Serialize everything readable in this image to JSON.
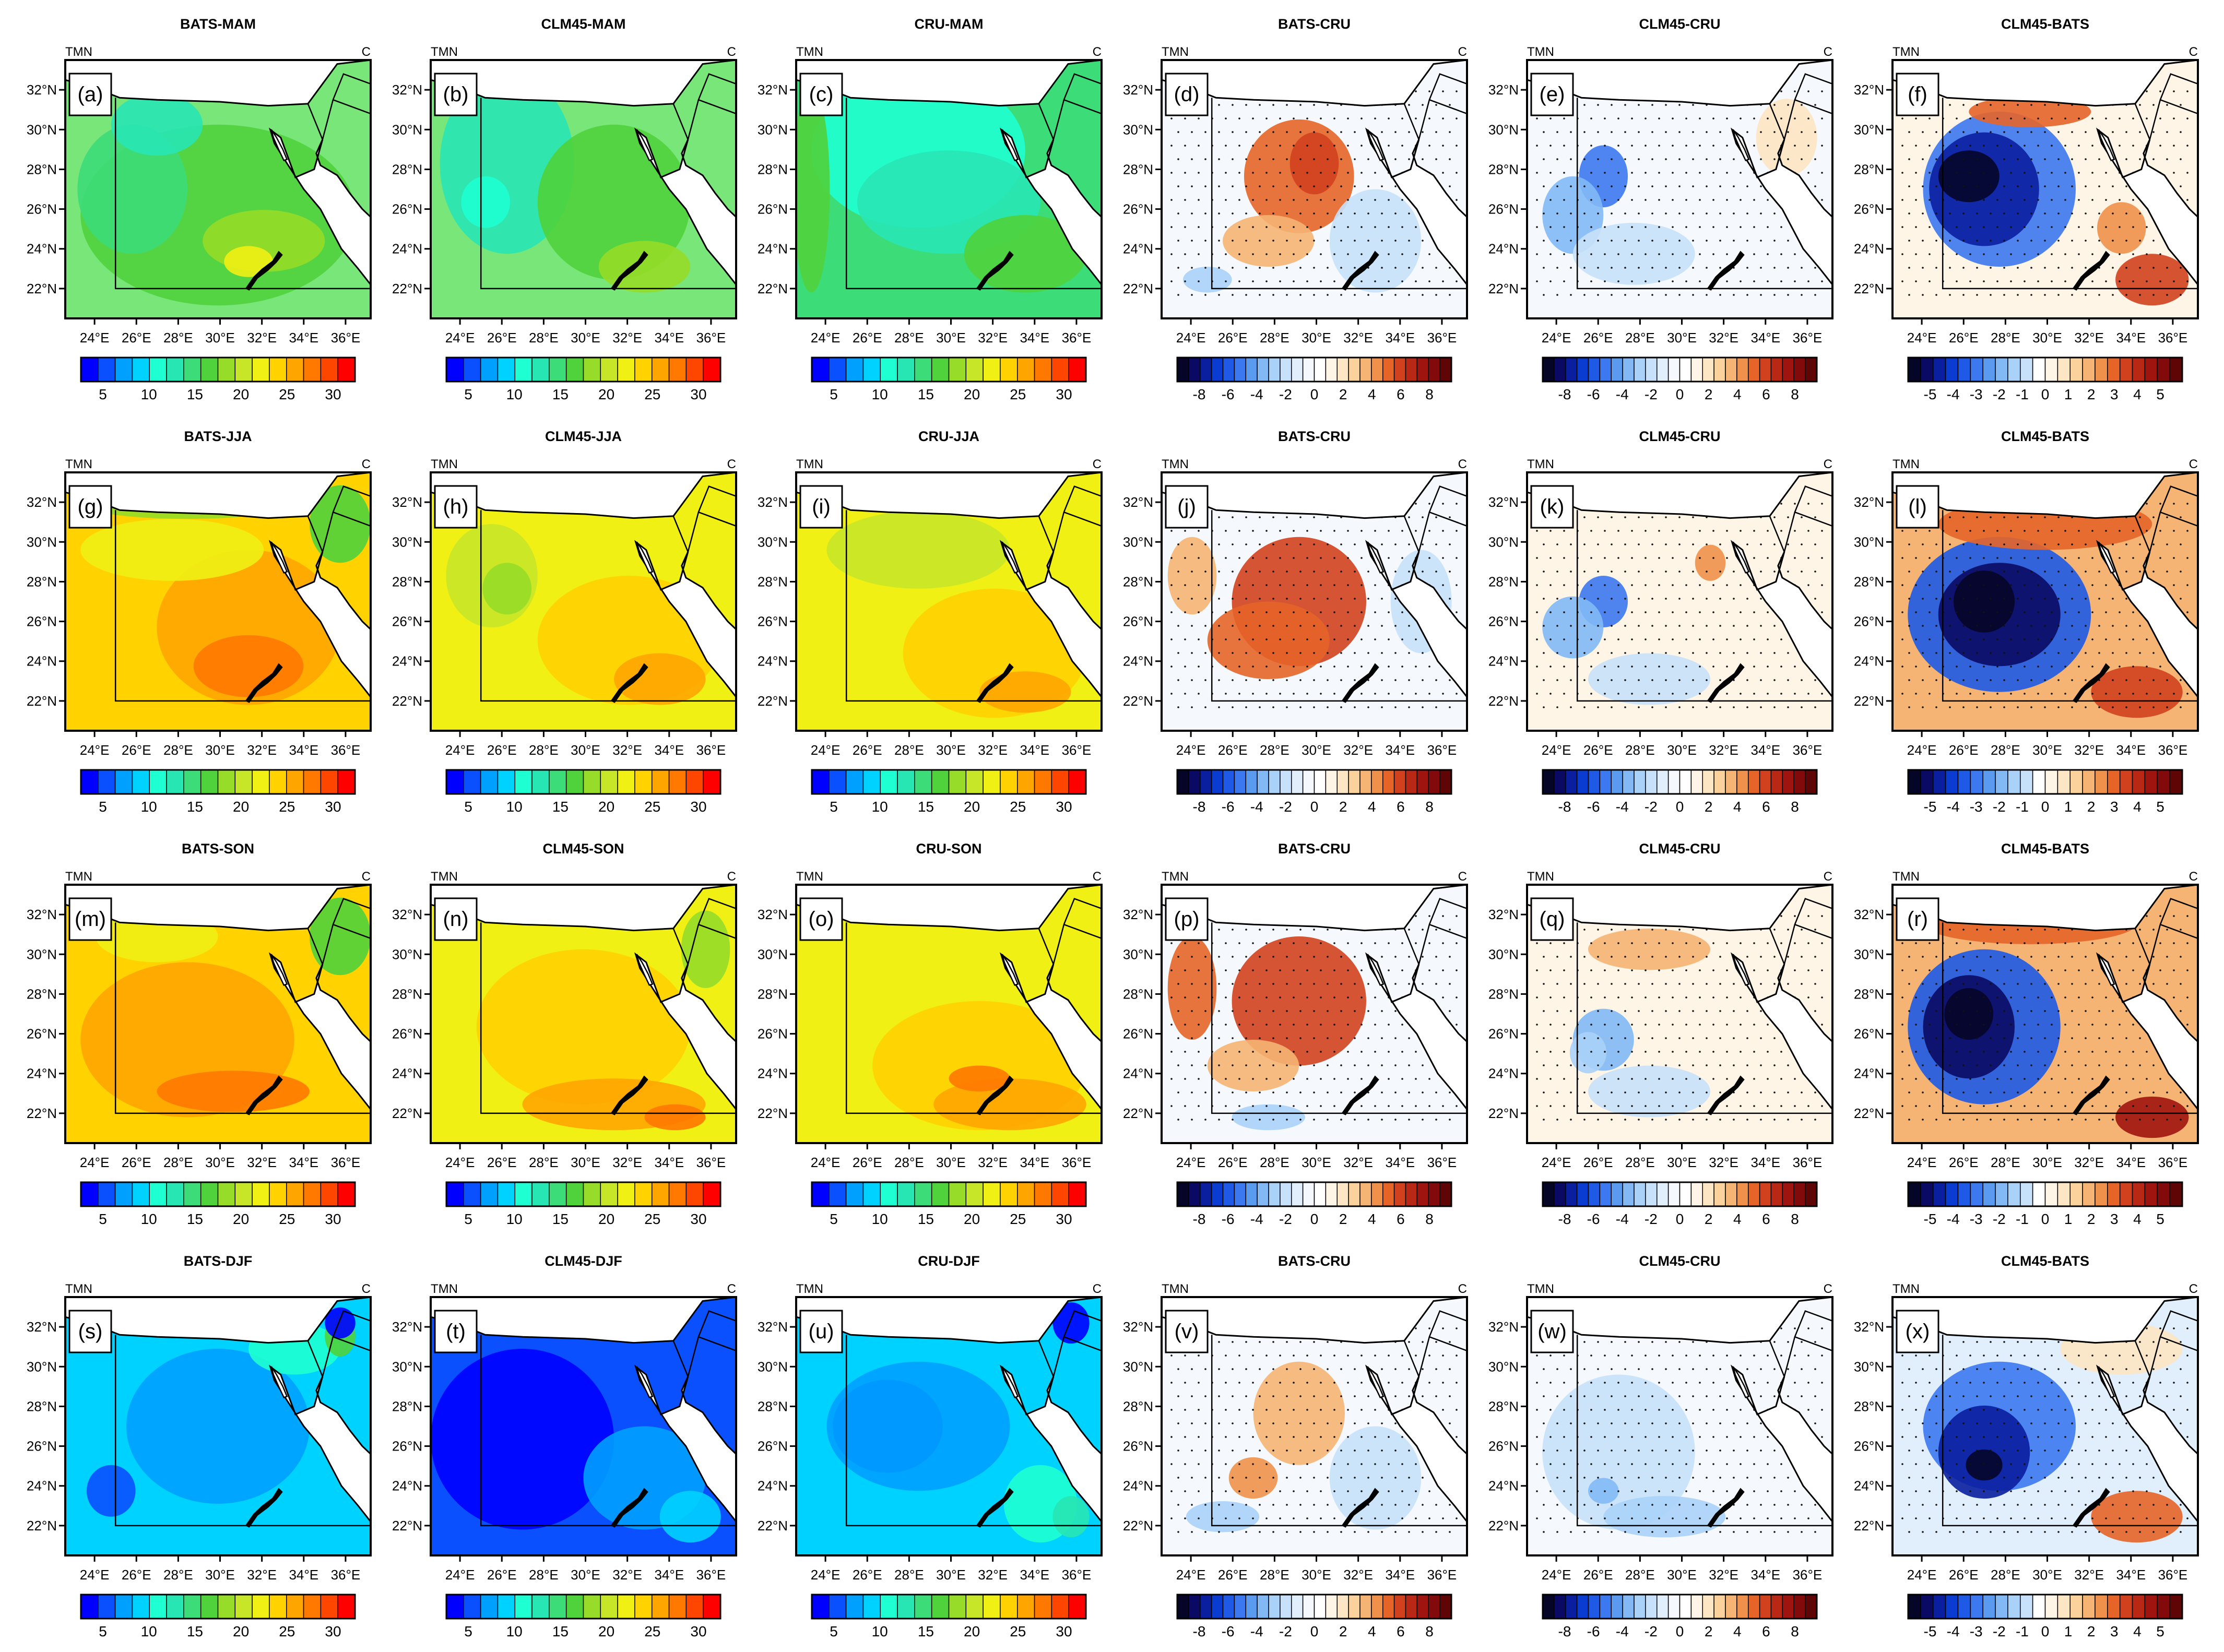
{
  "figure": {
    "corner_left": "TMN",
    "corner_right": "C",
    "lat_labels": [
      "32°N",
      "30°N",
      "28°N",
      "26°N",
      "24°N",
      "22°N"
    ],
    "lon_labels": [
      "24°E",
      "26°E",
      "28°E",
      "30°E",
      "32°E",
      "34°E",
      "36°E"
    ]
  },
  "colorbars": {
    "abs": {
      "labels": [
        "5",
        "10",
        "15",
        "20",
        "25",
        "30"
      ],
      "colors": [
        "#0000ff",
        "#0a50ff",
        "#00a0ff",
        "#00d2ff",
        "#1effd2",
        "#28e6b4",
        "#3cdc78",
        "#50d23c",
        "#96dc28",
        "#c8e628",
        "#f0f014",
        "#ffd200",
        "#ffa500",
        "#ff7800",
        "#ff4600",
        "#ff0000"
      ]
    },
    "diff8": {
      "labels": [
        "-8",
        "-6",
        "-4",
        "-2",
        "0",
        "2",
        "4",
        "6",
        "8"
      ],
      "colors": [
        "#050528",
        "#0a0a64",
        "#0a1ea0",
        "#0a3cd2",
        "#1e5ae6",
        "#3c78f0",
        "#5a9bf0",
        "#82b9f5",
        "#aad2f8",
        "#c8e1fa",
        "#e1eefc",
        "#f5f9fe",
        "#ffffff",
        "#fff5e6",
        "#fde6c3",
        "#fbd29b",
        "#f5b473",
        "#f0914b",
        "#e66428",
        "#d2411e",
        "#b92814",
        "#a0140f",
        "#820a0a",
        "#5f0505"
      ]
    },
    "diff5": {
      "labels": [
        "-5",
        "-4",
        "-3",
        "-2",
        "-1",
        "0",
        "1",
        "2",
        "3",
        "4",
        "5"
      ],
      "colors": [
        "#050528",
        "#0a0a64",
        "#0a1ea0",
        "#0a3cd2",
        "#1e5ae6",
        "#3c78f0",
        "#5a9bf0",
        "#82b9f5",
        "#aad2f8",
        "#c8e1fa",
        "#ffffff",
        "#fff5e6",
        "#fde6c3",
        "#fbd29b",
        "#f5b473",
        "#f0914b",
        "#e66428",
        "#d2411e",
        "#b92814",
        "#a0140f",
        "#820a0a",
        "#5f0505"
      ]
    }
  },
  "panels": [
    {
      "title": "BATS-MAM",
      "label": "(a)",
      "type": "abs",
      "base": "#78e678",
      "blobs": [
        [
          "#50d23c",
          0.5,
          0.6,
          0.45,
          0.35
        ],
        [
          "#3cdc78",
          0.22,
          0.5,
          0.18,
          0.25
        ],
        [
          "#96dc28",
          0.65,
          0.7,
          0.2,
          0.12
        ],
        [
          "#f0f014",
          0.6,
          0.78,
          0.08,
          0.06
        ],
        [
          "#28e6b4",
          0.3,
          0.25,
          0.15,
          0.12
        ]
      ]
    },
    {
      "title": "CLM45-MAM",
      "label": "(b)",
      "type": "abs",
      "base": "#78e678",
      "blobs": [
        [
          "#28e6b4",
          0.25,
          0.4,
          0.22,
          0.35
        ],
        [
          "#1effd2",
          0.18,
          0.55,
          0.08,
          0.1
        ],
        [
          "#50d23c",
          0.6,
          0.55,
          0.25,
          0.3
        ],
        [
          "#96dc28",
          0.7,
          0.8,
          0.15,
          0.1
        ]
      ]
    },
    {
      "title": "CRU-MAM",
      "label": "(c)",
      "type": "abs",
      "base": "#3cdc78",
      "blobs": [
        [
          "#1effd2",
          0.4,
          0.35,
          0.35,
          0.3
        ],
        [
          "#28e6b4",
          0.5,
          0.55,
          0.3,
          0.2
        ],
        [
          "#50d23c",
          0.75,
          0.75,
          0.2,
          0.15
        ],
        [
          "#50d23c",
          0.05,
          0.5,
          0.06,
          0.4
        ]
      ]
    },
    {
      "title": "BATS-CRU",
      "label": "(d)",
      "type": "diff8",
      "base": "#f5f9fe",
      "blobs": [
        [
          "#e66428",
          0.45,
          0.45,
          0.18,
          0.22
        ],
        [
          "#f5b473",
          0.35,
          0.7,
          0.15,
          0.1
        ],
        [
          "#d2411e",
          0.5,
          0.4,
          0.08,
          0.12
        ],
        [
          "#c8e1fa",
          0.7,
          0.7,
          0.15,
          0.2
        ],
        [
          "#aad2f8",
          0.15,
          0.85,
          0.08,
          0.05
        ]
      ]
    },
    {
      "title": "CLM45-CRU",
      "label": "(e)",
      "type": "diff8",
      "base": "#f5f9fe",
      "blobs": [
        [
          "#3c78f0",
          0.25,
          0.45,
          0.08,
          0.12
        ],
        [
          "#82b9f5",
          0.15,
          0.6,
          0.1,
          0.15
        ],
        [
          "#c8e1fa",
          0.35,
          0.75,
          0.2,
          0.12
        ],
        [
          "#fde6c3",
          0.85,
          0.3,
          0.1,
          0.15
        ]
      ]
    },
    {
      "title": "CLM45-BATS",
      "label": "(f)",
      "type": "diff5",
      "base": "#fff5e6",
      "blobs": [
        [
          "#3c78f0",
          0.35,
          0.5,
          0.25,
          0.3
        ],
        [
          "#0a1ea0",
          0.3,
          0.5,
          0.18,
          0.22
        ],
        [
          "#050528",
          0.25,
          0.45,
          0.1,
          0.1
        ],
        [
          "#e66428",
          0.45,
          0.2,
          0.2,
          0.06
        ],
        [
          "#d2411e",
          0.85,
          0.85,
          0.12,
          0.1
        ],
        [
          "#f0914b",
          0.75,
          0.65,
          0.08,
          0.1
        ]
      ]
    },
    {
      "title": "BATS-JJA",
      "label": "(g)",
      "type": "abs",
      "base": "#ffd200",
      "blobs": [
        [
          "#ffa500",
          0.6,
          0.6,
          0.3,
          0.3
        ],
        [
          "#ff7800",
          0.6,
          0.75,
          0.18,
          0.12
        ],
        [
          "#f0f014",
          0.35,
          0.3,
          0.3,
          0.12
        ],
        [
          "#96dc28",
          0.4,
          0.12,
          0.35,
          0.06
        ],
        [
          "#50d23c",
          0.9,
          0.2,
          0.1,
          0.15
        ]
      ]
    },
    {
      "title": "CLM45-JJA",
      "label": "(h)",
      "type": "abs",
      "base": "#f0f014",
      "blobs": [
        [
          "#c8e628",
          0.2,
          0.4,
          0.15,
          0.2
        ],
        [
          "#96dc28",
          0.25,
          0.45,
          0.08,
          0.1
        ],
        [
          "#ffd200",
          0.65,
          0.65,
          0.3,
          0.25
        ],
        [
          "#ffa500",
          0.75,
          0.8,
          0.15,
          0.1
        ]
      ]
    },
    {
      "title": "CRU-JJA",
      "label": "(i)",
      "type": "abs",
      "base": "#f0f014",
      "blobs": [
        [
          "#c8e628",
          0.4,
          0.3,
          0.3,
          0.15
        ],
        [
          "#ffd200",
          0.65,
          0.7,
          0.3,
          0.25
        ],
        [
          "#ffa500",
          0.75,
          0.85,
          0.15,
          0.08
        ]
      ]
    },
    {
      "title": "BATS-CRU",
      "label": "(j)",
      "type": "diff8",
      "base": "#f5f9fe",
      "blobs": [
        [
          "#d2411e",
          0.45,
          0.5,
          0.22,
          0.25
        ],
        [
          "#e66428",
          0.35,
          0.65,
          0.2,
          0.15
        ],
        [
          "#f5b473",
          0.1,
          0.4,
          0.08,
          0.15
        ],
        [
          "#c8e1fa",
          0.85,
          0.5,
          0.1,
          0.2
        ]
      ]
    },
    {
      "title": "CLM45-CRU",
      "label": "(k)",
      "type": "diff8",
      "base": "#fff5e6",
      "blobs": [
        [
          "#3c78f0",
          0.25,
          0.5,
          0.08,
          0.1
        ],
        [
          "#82b9f5",
          0.15,
          0.6,
          0.1,
          0.12
        ],
        [
          "#c8e1fa",
          0.4,
          0.8,
          0.2,
          0.1
        ],
        [
          "#f0914b",
          0.6,
          0.35,
          0.05,
          0.07
        ]
      ]
    },
    {
      "title": "CLM45-BATS",
      "label": "(l)",
      "type": "diff5",
      "base": "#f5b473",
      "blobs": [
        [
          "#1e5ae6",
          0.35,
          0.55,
          0.3,
          0.3
        ],
        [
          "#0a0a64",
          0.35,
          0.55,
          0.2,
          0.2
        ],
        [
          "#050528",
          0.3,
          0.5,
          0.1,
          0.12
        ],
        [
          "#e66428",
          0.5,
          0.2,
          0.35,
          0.1
        ],
        [
          "#d2411e",
          0.8,
          0.85,
          0.15,
          0.1
        ]
      ]
    },
    {
      "title": "BATS-SON",
      "label": "(m)",
      "type": "abs",
      "base": "#ffd200",
      "blobs": [
        [
          "#ffa500",
          0.4,
          0.6,
          0.35,
          0.3
        ],
        [
          "#ff7800",
          0.55,
          0.8,
          0.25,
          0.08
        ],
        [
          "#f0f014",
          0.3,
          0.2,
          0.2,
          0.1
        ],
        [
          "#50d23c",
          0.9,
          0.2,
          0.1,
          0.15
        ]
      ]
    },
    {
      "title": "CLM45-SON",
      "label": "(n)",
      "type": "abs",
      "base": "#f0f014",
      "blobs": [
        [
          "#ffd200",
          0.5,
          0.55,
          0.35,
          0.3
        ],
        [
          "#ffa500",
          0.6,
          0.85,
          0.3,
          0.1
        ],
        [
          "#ff7800",
          0.8,
          0.9,
          0.1,
          0.05
        ],
        [
          "#96dc28",
          0.9,
          0.25,
          0.08,
          0.15
        ]
      ]
    },
    {
      "title": "CRU-SON",
      "label": "(o)",
      "type": "abs",
      "base": "#f0f014",
      "blobs": [
        [
          "#ffd200",
          0.6,
          0.7,
          0.35,
          0.25
        ],
        [
          "#ffa500",
          0.7,
          0.85,
          0.25,
          0.1
        ],
        [
          "#ff7800",
          0.6,
          0.75,
          0.1,
          0.05
        ]
      ]
    },
    {
      "title": "BATS-CRU",
      "label": "(p)",
      "type": "diff8",
      "base": "#f5f9fe",
      "blobs": [
        [
          "#d2411e",
          0.45,
          0.45,
          0.22,
          0.25
        ],
        [
          "#e66428",
          0.1,
          0.4,
          0.08,
          0.2
        ],
        [
          "#f5b473",
          0.3,
          0.7,
          0.15,
          0.1
        ],
        [
          "#aad2f8",
          0.35,
          0.9,
          0.12,
          0.05
        ]
      ]
    },
    {
      "title": "CLM45-CRU",
      "label": "(q)",
      "type": "diff8",
      "base": "#fff5e6",
      "blobs": [
        [
          "#f5b473",
          0.4,
          0.25,
          0.2,
          0.08
        ],
        [
          "#82b9f5",
          0.25,
          0.6,
          0.1,
          0.12
        ],
        [
          "#c8e1fa",
          0.4,
          0.8,
          0.2,
          0.1
        ],
        [
          "#aad2f8",
          0.2,
          0.65,
          0.06,
          0.08
        ]
      ]
    },
    {
      "title": "CLM45-BATS",
      "label": "(r)",
      "type": "diff5",
      "base": "#f5b473",
      "blobs": [
        [
          "#1e5ae6",
          0.3,
          0.55,
          0.25,
          0.3
        ],
        [
          "#0a0a64",
          0.25,
          0.55,
          0.15,
          0.2
        ],
        [
          "#050528",
          0.25,
          0.5,
          0.08,
          0.1
        ],
        [
          "#e66428",
          0.45,
          0.15,
          0.35,
          0.08
        ],
        [
          "#a0140f",
          0.85,
          0.9,
          0.12,
          0.08
        ]
      ]
    },
    {
      "title": "BATS-DJF",
      "label": "(s)",
      "type": "abs",
      "base": "#00d2ff",
      "blobs": [
        [
          "#00a0ff",
          0.5,
          0.5,
          0.3,
          0.3
        ],
        [
          "#1effd2",
          0.75,
          0.2,
          0.15,
          0.1
        ],
        [
          "#0a50ff",
          0.15,
          0.75,
          0.08,
          0.1
        ],
        [
          "#50d23c",
          0.9,
          0.15,
          0.05,
          0.08
        ],
        [
          "#0000ff",
          0.9,
          0.1,
          0.05,
          0.06
        ]
      ]
    },
    {
      "title": "CLM45-DJF",
      "label": "(t)",
      "type": "abs",
      "base": "#0a50ff",
      "blobs": [
        [
          "#0000ff",
          0.3,
          0.55,
          0.3,
          0.35
        ],
        [
          "#00a0ff",
          0.7,
          0.7,
          0.2,
          0.2
        ],
        [
          "#00d2ff",
          0.85,
          0.85,
          0.1,
          0.1
        ]
      ]
    },
    {
      "title": "CRU-DJF",
      "label": "(u)",
      "type": "abs",
      "base": "#00d2ff",
      "blobs": [
        [
          "#0a50ff",
          0.3,
          0.5,
          0.18,
          0.18
        ],
        [
          "#00a0ff",
          0.4,
          0.5,
          0.3,
          0.25
        ],
        [
          "#1effd2",
          0.8,
          0.8,
          0.12,
          0.15
        ],
        [
          "#28e6b4",
          0.9,
          0.85,
          0.06,
          0.08
        ],
        [
          "#0000ff",
          0.9,
          0.1,
          0.06,
          0.08
        ]
      ]
    },
    {
      "title": "BATS-CRU",
      "label": "(v)",
      "type": "diff8",
      "base": "#f5f9fe",
      "blobs": [
        [
          "#f5b473",
          0.45,
          0.45,
          0.15,
          0.2
        ],
        [
          "#f0914b",
          0.3,
          0.7,
          0.08,
          0.08
        ],
        [
          "#c8e1fa",
          0.7,
          0.7,
          0.15,
          0.2
        ],
        [
          "#aad2f8",
          0.2,
          0.85,
          0.12,
          0.06
        ]
      ]
    },
    {
      "title": "CLM45-CRU",
      "label": "(w)",
      "type": "diff8",
      "base": "#f5f9fe",
      "blobs": [
        [
          "#c8e1fa",
          0.3,
          0.6,
          0.25,
          0.3
        ],
        [
          "#aad2f8",
          0.45,
          0.85,
          0.2,
          0.08
        ],
        [
          "#82b9f5",
          0.25,
          0.75,
          0.05,
          0.05
        ]
      ]
    },
    {
      "title": "CLM45-BATS",
      "label": "(x)",
      "type": "diff5",
      "base": "#e1eefc",
      "blobs": [
        [
          "#3c78f0",
          0.35,
          0.5,
          0.25,
          0.25
        ],
        [
          "#0a1ea0",
          0.3,
          0.6,
          0.15,
          0.18
        ],
        [
          "#050528",
          0.3,
          0.65,
          0.06,
          0.06
        ],
        [
          "#e66428",
          0.8,
          0.85,
          0.15,
          0.1
        ],
        [
          "#fde6c3",
          0.75,
          0.2,
          0.2,
          0.1
        ]
      ]
    }
  ]
}
